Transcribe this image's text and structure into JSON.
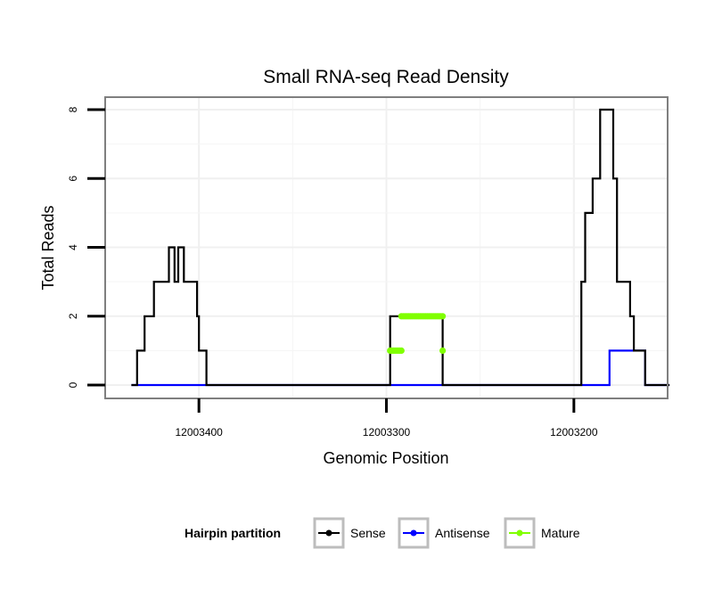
{
  "chart_data": {
    "type": "line",
    "title": "Small RNA-seq Read Density",
    "xlabel": "Genomic Position",
    "ylabel": "Total Reads",
    "x_reversed": true,
    "xlim": [
      12003150,
      12003450
    ],
    "ylim": [
      0,
      8.25
    ],
    "x_ticks": [
      12003400,
      12003300,
      12003200
    ],
    "x_tick_labels": [
      "12003400",
      "12003300",
      "12003200"
    ],
    "y_ticks": [
      0,
      2,
      4,
      6,
      8
    ],
    "y_tick_labels": [
      "0",
      "2",
      "4",
      "6",
      "8"
    ],
    "grid": true,
    "legend": {
      "title": "Hairpin partition",
      "position": "bottom",
      "entries": [
        {
          "label": "Sense",
          "color": "#000000"
        },
        {
          "label": "Antisense",
          "color": "#0000ff"
        },
        {
          "label": "Mature",
          "color": "#80ff00"
        }
      ]
    },
    "series": [
      {
        "name": "Sense",
        "color": "#000000",
        "style": "step",
        "points": [
          [
            12003436,
            0
          ],
          [
            12003433,
            0
          ],
          [
            12003433,
            1
          ],
          [
            12003429,
            1
          ],
          [
            12003429,
            2
          ],
          [
            12003424,
            2
          ],
          [
            12003424,
            3
          ],
          [
            12003416,
            3
          ],
          [
            12003416,
            4
          ],
          [
            12003413,
            4
          ],
          [
            12003413,
            3
          ],
          [
            12003411,
            3
          ],
          [
            12003411,
            4
          ],
          [
            12003408,
            4
          ],
          [
            12003408,
            3
          ],
          [
            12003401,
            3
          ],
          [
            12003401,
            2
          ],
          [
            12003400,
            2
          ],
          [
            12003400,
            1
          ],
          [
            12003396,
            1
          ],
          [
            12003396,
            0
          ],
          [
            12003298,
            0
          ],
          [
            12003298,
            2
          ],
          [
            12003292,
            2
          ],
          [
            12003292,
            2
          ],
          [
            12003270,
            2
          ],
          [
            12003270,
            0
          ],
          [
            12003196,
            0
          ],
          [
            12003196,
            3
          ],
          [
            12003194,
            3
          ],
          [
            12003194,
            5
          ],
          [
            12003190,
            5
          ],
          [
            12003190,
            6
          ],
          [
            12003186,
            6
          ],
          [
            12003186,
            8
          ],
          [
            12003179,
            8
          ],
          [
            12003179,
            6
          ],
          [
            12003177,
            6
          ],
          [
            12003177,
            3
          ],
          [
            12003170,
            3
          ],
          [
            12003170,
            2
          ],
          [
            12003168,
            2
          ],
          [
            12003168,
            1
          ],
          [
            12003162,
            1
          ],
          [
            12003162,
            0
          ],
          [
            12003149,
            0
          ]
        ]
      },
      {
        "name": "Antisense",
        "color": "#0000ff",
        "style": "step",
        "points": [
          [
            12003436,
            0
          ],
          [
            12003181,
            0
          ],
          [
            12003181,
            1
          ],
          [
            12003162,
            1
          ],
          [
            12003162,
            0
          ],
          [
            12003149,
            0
          ]
        ]
      },
      {
        "name": "Mature",
        "color": "#80ff00",
        "style": "points",
        "segments": [
          {
            "x_from": 12003298,
            "x_to": 12003292,
            "y": 1
          },
          {
            "x_from": 12003292,
            "x_to": 12003270,
            "y": 2
          },
          {
            "x_from": 12003270,
            "x_to": 12003270,
            "y": 1
          }
        ]
      }
    ]
  }
}
